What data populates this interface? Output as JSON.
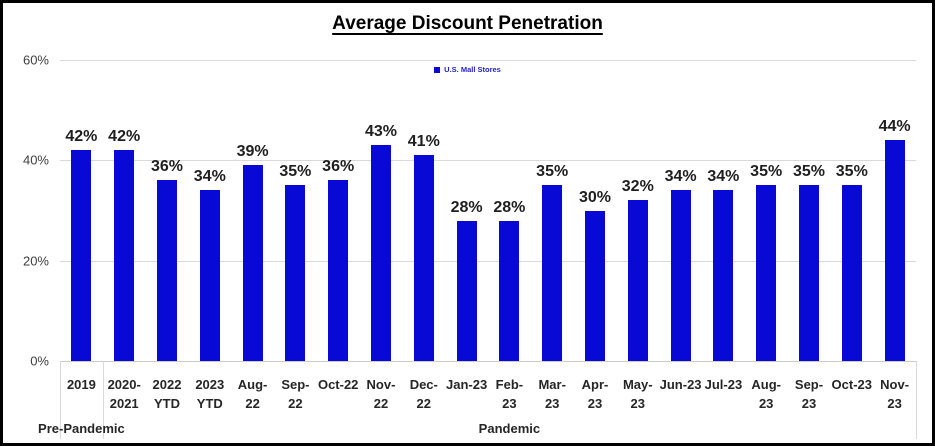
{
  "window": {
    "background": "#ffffff",
    "border_color": "#000000"
  },
  "chart_data": {
    "type": "bar",
    "title": "Average Discount Penetration",
    "legend": {
      "label": "U.S. Mall Stores",
      "position": "top-center",
      "text_color": "#2222cc"
    },
    "bar_color": "#0909d6",
    "grid": true,
    "grid_color": "#d9d9d9",
    "ylim": [
      0,
      60
    ],
    "yticks": [
      0,
      20,
      40,
      60
    ],
    "ytick_labels": [
      "0%",
      "20%",
      "40%",
      "60%"
    ],
    "value_suffix": "%",
    "categories": [
      "2019",
      "2020-2021",
      "2022 YTD",
      "2023 YTD",
      "Aug-22",
      "Sep-22",
      "Oct-22",
      "Nov-22",
      "Dec-22",
      "Jan-23",
      "Feb-23",
      "Mar-23",
      "Apr-23",
      "May-23",
      "Jun-23",
      "Jul-23",
      "Aug-23",
      "Sep-23",
      "Oct-23",
      "Nov-23"
    ],
    "category_label_lines": [
      [
        "2019"
      ],
      [
        "2020-",
        "2021"
      ],
      [
        "2022",
        "YTD"
      ],
      [
        "2023",
        "YTD"
      ],
      [
        "Aug-",
        "22"
      ],
      [
        "Sep-",
        "22"
      ],
      [
        "Oct-22"
      ],
      [
        "Nov-",
        "22"
      ],
      [
        "Dec-",
        "22"
      ],
      [
        "Jan-23"
      ],
      [
        "Feb-",
        "23"
      ],
      [
        "Mar-",
        "23"
      ],
      [
        "Apr-",
        "23"
      ],
      [
        "May-",
        "23"
      ],
      [
        "Jun-23"
      ],
      [
        "Jul-23"
      ],
      [
        "Aug-",
        "23"
      ],
      [
        "Sep-",
        "23"
      ],
      [
        "Oct-23"
      ],
      [
        "Nov-",
        "23"
      ]
    ],
    "values": [
      42,
      42,
      36,
      34,
      39,
      35,
      36,
      43,
      41,
      28,
      28,
      35,
      30,
      32,
      34,
      34,
      35,
      35,
      35,
      44
    ],
    "data_labels": [
      "42%",
      "42%",
      "36%",
      "34%",
      "39%",
      "35%",
      "36%",
      "43%",
      "41%",
      "28%",
      "28%",
      "35%",
      "30%",
      "32%",
      "34%",
      "34%",
      "35%",
      "35%",
      "35%",
      "44%"
    ],
    "axis_groups": [
      {
        "label": "Pre-Pandemic",
        "span": [
          0,
          0
        ]
      },
      {
        "label": "Pandemic",
        "span": [
          1,
          19
        ]
      }
    ]
  }
}
